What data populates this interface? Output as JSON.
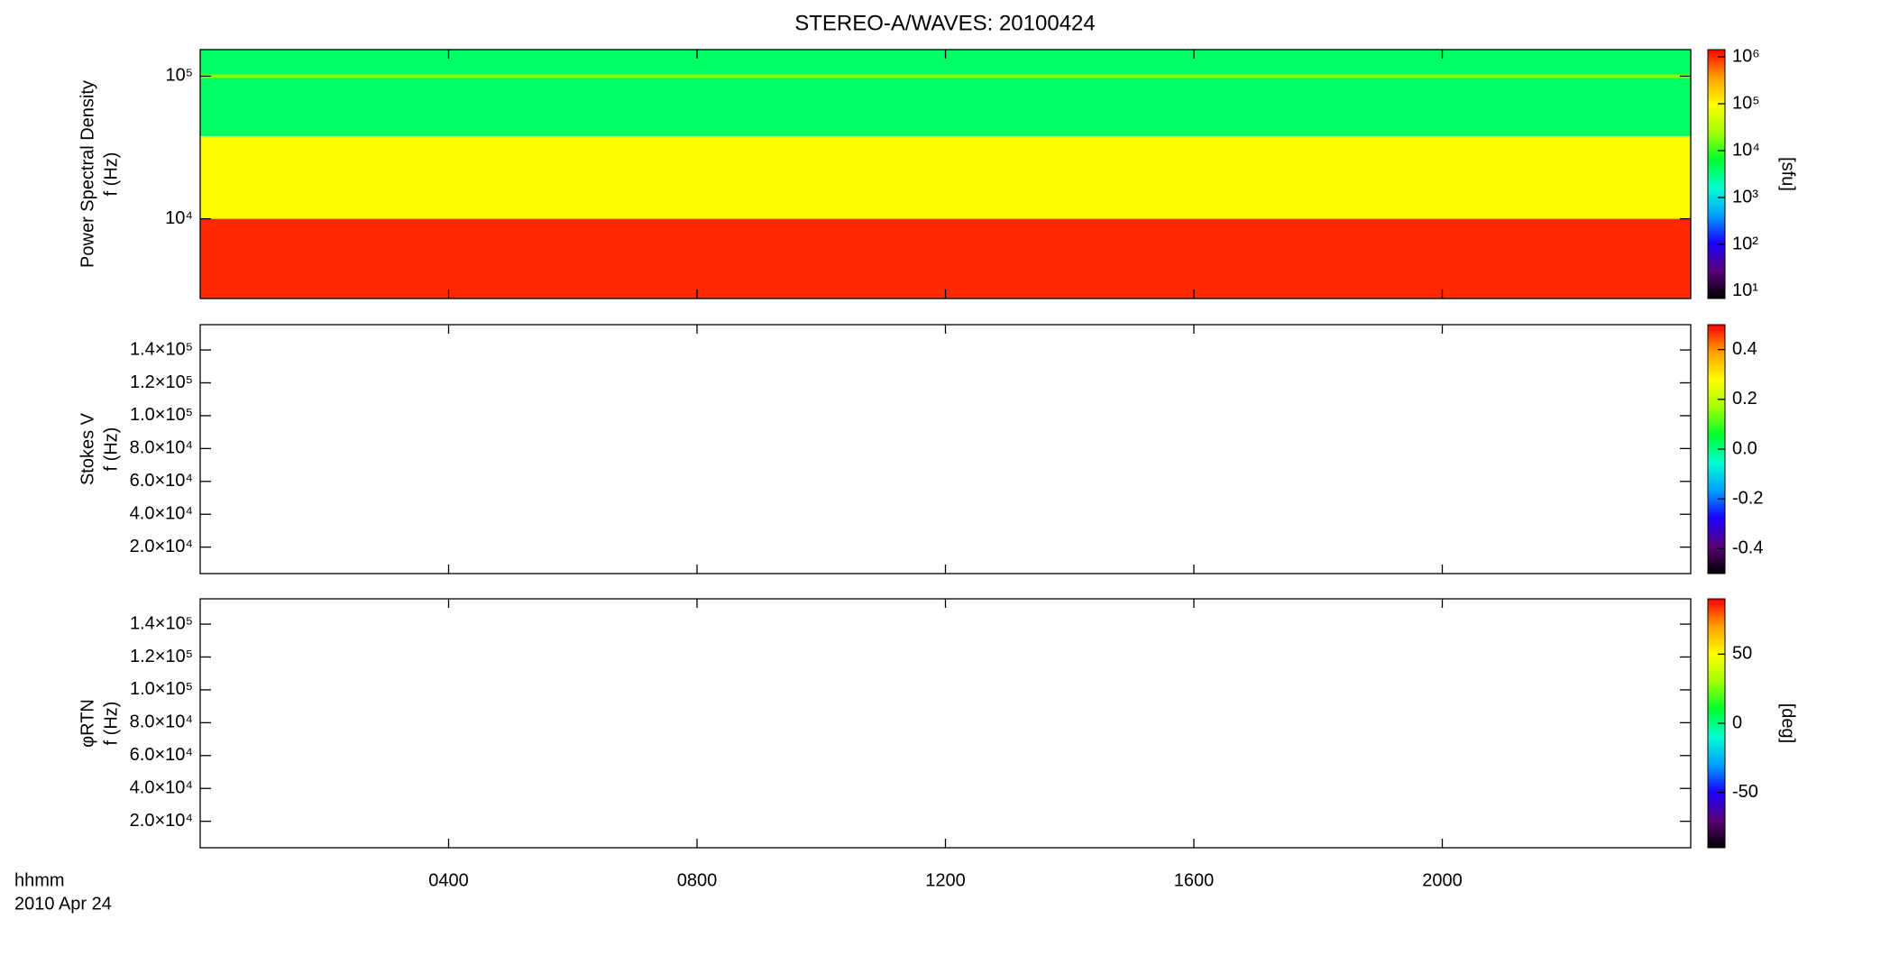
{
  "figure": {
    "title": "STEREO-A/WAVES: 20100424",
    "x_label": [
      "hhmm",
      "2010 Apr 24"
    ],
    "xlim": [
      0,
      24
    ],
    "xticks": [
      {
        "value": 4,
        "label": "0400"
      },
      {
        "value": 8,
        "label": "0800"
      },
      {
        "value": 12,
        "label": "1200"
      },
      {
        "value": 16,
        "label": "1600"
      },
      {
        "value": 20,
        "label": "2000"
      }
    ]
  },
  "chart_data": [
    {
      "type": "spectrogram",
      "y_label": [
        "Power Spectral Density",
        "f (Hz)"
      ],
      "log_y": true,
      "ylim": [
        2760,
        153500
      ],
      "yticks": [
        {
          "value": 10000,
          "label": "10⁴"
        },
        {
          "value": 100000,
          "label": "10⁵"
        }
      ],
      "bands": [
        {
          "f": [
            2760,
            10000
          ],
          "value": 1000000
        },
        {
          "f": [
            10000,
            38000
          ],
          "value": 100000
        },
        {
          "f": [
            38000,
            153500
          ],
          "value": 4000
        },
        {
          "f": [
            97000,
            103000
          ],
          "value": 20000
        }
      ],
      "colorbar": {
        "label": "[sfu]",
        "log": true,
        "clim": [
          7,
          1430000
        ],
        "ticks": [
          {
            "value": 10,
            "label": "10¹"
          },
          {
            "value": 100,
            "label": "10²"
          },
          {
            "value": 1000,
            "label": "10³"
          },
          {
            "value": 10000,
            "label": "10⁴"
          },
          {
            "value": 100000,
            "label": "10⁵"
          },
          {
            "value": 1000000,
            "label": "10⁶"
          }
        ]
      }
    },
    {
      "type": "spectrogram",
      "y_label": [
        "Stokes V",
        "f (Hz)"
      ],
      "log_y": false,
      "ylim": [
        3900,
        155400
      ],
      "yticks": [
        {
          "value": 20000,
          "label": "2.0×10⁴"
        },
        {
          "value": 40000,
          "label": "4.0×10⁴"
        },
        {
          "value": 60000,
          "label": "6.0×10⁴"
        },
        {
          "value": 80000,
          "label": "8.0×10⁴"
        },
        {
          "value": 100000,
          "label": "1.0×10⁵"
        },
        {
          "value": 120000,
          "label": "1.2×10⁵"
        },
        {
          "value": 140000,
          "label": "1.4×10⁵"
        }
      ],
      "bands": [],
      "colorbar": {
        "log": false,
        "clim": [
          -0.5,
          0.5
        ],
        "ticks": [
          -0.4,
          -0.2,
          {
            "value": 0,
            "label": "0.0"
          },
          0.2,
          0.4
        ]
      }
    },
    {
      "type": "spectrogram",
      "y_label": [
        "φRTN",
        "f (Hz)"
      ],
      "log_y": false,
      "ylim": [
        3900,
        155400
      ],
      "yticks": [
        {
          "value": 20000,
          "label": "2.0×10⁴"
        },
        {
          "value": 40000,
          "label": "4.0×10⁴"
        },
        {
          "value": 60000,
          "label": "6.0×10⁴"
        },
        {
          "value": 80000,
          "label": "8.0×10⁴"
        },
        {
          "value": 100000,
          "label": "1.0×10⁵"
        },
        {
          "value": 120000,
          "label": "1.2×10⁵"
        },
        {
          "value": 140000,
          "label": "1.4×10⁵"
        }
      ],
      "bands": [],
      "colorbar": {
        "label": "[deg]",
        "log": false,
        "clim": [
          -90,
          90
        ],
        "ticks": [
          -50,
          0,
          50
        ]
      }
    }
  ],
  "colormap": [
    "#000000",
    "#5a007a",
    "#1a00ff",
    "#00a0ff",
    "#00ffd0",
    "#00ff30",
    "#a0ff00",
    "#ffff00",
    "#ffa000",
    "#ff0000"
  ]
}
